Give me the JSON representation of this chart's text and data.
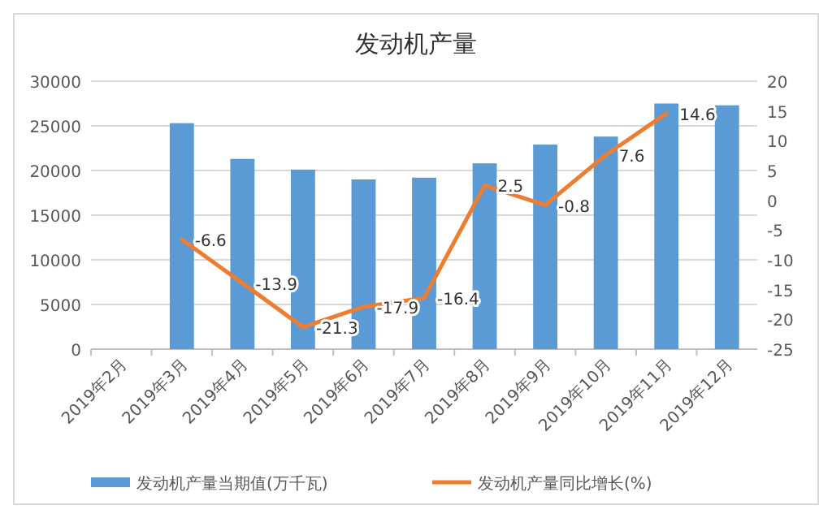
{
  "chart_data": {
    "type": "bar",
    "title": "发动机产量",
    "categories": [
      "2019年2月",
      "2019年3月",
      "2019年4月",
      "2019年5月",
      "2019年6月",
      "2019年7月",
      "2019年8月",
      "2019年9月",
      "2019年10月",
      "2019年11月",
      "2019年12月"
    ],
    "series": [
      {
        "name": "发动机产量当期值(万千瓦)",
        "color": "#5b9bd5",
        "values": [
          null,
          25300,
          21300,
          20100,
          19000,
          19200,
          20800,
          22900,
          23800,
          27500,
          27300
        ]
      },
      {
        "name": "发动机产量同比增长(%)",
        "type": "line",
        "axis": "y2",
        "color": "#ed7d31",
        "values": [
          null,
          -6.6,
          -13.9,
          -21.3,
          -17.9,
          -16.4,
          2.5,
          -0.8,
          7.6,
          14.6,
          null
        ],
        "value_labels": [
          null,
          "-6.6",
          "-13.9",
          "-21.3",
          "-17.9",
          "-16.4",
          "2.5",
          "-0.8",
          "7.6",
          "14.6",
          null
        ]
      }
    ],
    "ylim": [
      0,
      30000
    ],
    "yticks": [
      0,
      5000,
      10000,
      15000,
      20000,
      25000,
      30000
    ],
    "y2lim": [
      -25,
      20
    ],
    "y2ticks": [
      -25,
      -20,
      -15,
      -10,
      -5,
      0,
      5,
      10,
      15,
      20
    ],
    "grid": "y",
    "legend": "bottom"
  }
}
